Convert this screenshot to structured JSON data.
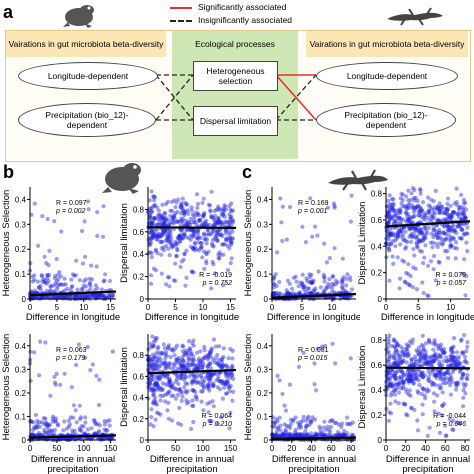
{
  "panel_a": {
    "letter": "a",
    "legend": {
      "significant": "Significantly associated",
      "insignificant": "Insignificantly associated",
      "significant_color": "#e8302a",
      "insignificant_color": "#000000"
    },
    "left_header": "Vairations in gut microbiota beta-diversity",
    "center_header": "Ecological processes",
    "right_header": "Vairations in gut microbiota beta-diversity",
    "left_items": [
      "Longitude-dependent",
      "Precipitation (bio_12)-dependent"
    ],
    "right_items": [
      "Longitude-dependent",
      "Precipitation (bio_12)-dependent"
    ],
    "processes": [
      "Heterogeneous selection",
      "Dispersal limitation"
    ],
    "header_color": "#fce6b3",
    "center_color": "#cfe7b4",
    "left_icon": "frog-icon",
    "right_icon": "lizard-icon"
  },
  "panel_b": {
    "letter": "b",
    "icon": "frog-icon"
  },
  "panel_c": {
    "letter": "c",
    "icon": "lizard-icon"
  },
  "point_color": "#2626e0",
  "chart_data": [
    {
      "id": "b1",
      "type": "scatter",
      "ylabel": "Heterogeneous Selection",
      "xlabel": "Difference in longitude",
      "xlim": [
        0,
        16
      ],
      "xticks": [
        0,
        5,
        10,
        15
      ],
      "ylim": [
        0,
        0.45
      ],
      "yticks": [
        0,
        0.1,
        0.2,
        0.3,
        0.4
      ],
      "stats": {
        "r": "R = 0.097",
        "p": "p = 0.002"
      },
      "fit": [
        [
          0,
          0.015
        ],
        [
          16,
          0.03
        ]
      ],
      "seed": 11,
      "pattern": "low"
    },
    {
      "id": "b2",
      "type": "scatter",
      "ylabel": "Dispersal limitation",
      "xlabel": "Difference in longitude",
      "xlim": [
        0,
        16
      ],
      "xticks": [
        0,
        5,
        10,
        15
      ],
      "ylim": [
        0,
        1.0
      ],
      "yticks": [
        0,
        0.2,
        0.4,
        0.6,
        0.8
      ],
      "stats": {
        "r": "R = -0.019",
        "p": "p = 0.752"
      },
      "fit": [
        [
          0,
          0.64
        ],
        [
          16,
          0.635
        ]
      ],
      "seed": 12,
      "pattern": "band"
    },
    {
      "id": "b3",
      "type": "scatter",
      "ylabel": "Heterogeneous Selection",
      "xlabel": "Difference in annual precipitation",
      "xlim": [
        0,
        160
      ],
      "xticks": [
        0,
        50,
        100,
        150
      ],
      "ylim": [
        0,
        0.45
      ],
      "yticks": [
        0,
        0.1,
        0.2,
        0.3,
        0.4
      ],
      "stats": {
        "r": "R = 0.063",
        "p": "p = 0.179"
      },
      "fit": [
        [
          0,
          0.01
        ],
        [
          160,
          0.02
        ]
      ],
      "seed": 13,
      "pattern": "low"
    },
    {
      "id": "b4",
      "type": "scatter",
      "ylabel": "Dispersal limitation",
      "xlabel": "Difference in annual precipitation",
      "xlim": [
        0,
        160
      ],
      "xticks": [
        0,
        50,
        100,
        150
      ],
      "ylim": [
        0,
        1.0
      ],
      "yticks": [
        0,
        0.2,
        0.4,
        0.6,
        0.8
      ],
      "stats": {
        "r": "R = 0.064",
        "p": "p = 0.210"
      },
      "fit": [
        [
          0,
          0.63
        ],
        [
          160,
          0.66
        ]
      ],
      "seed": 14,
      "pattern": "band"
    },
    {
      "id": "c1",
      "type": "scatter",
      "ylabel": "Heterogeneous Selection",
      "xlabel": "Difference in longitude",
      "xlim": [
        0,
        14
      ],
      "xticks": [
        0,
        5,
        10
      ],
      "ylim": [
        0,
        0.45
      ],
      "yticks": [
        0,
        0.1,
        0.2,
        0.3,
        0.4
      ],
      "stats": {
        "r": "R = 0.169",
        "p": "p = 0.001"
      },
      "fit": [
        [
          0,
          0.005
        ],
        [
          14,
          0.02
        ]
      ],
      "seed": 21,
      "pattern": "low"
    },
    {
      "id": "c2",
      "type": "scatter",
      "ylabel": "Dispersal Limitation",
      "xlabel": "Difference in longitude",
      "xlim": [
        0,
        13
      ],
      "xticks": [
        0,
        5,
        10
      ],
      "ylim": [
        0,
        0.85
      ],
      "yticks": [
        0,
        0.2,
        0.4,
        0.6,
        0.8
      ],
      "stats": {
        "r": "R = 0.079",
        "p": "p = 0.057"
      },
      "fit": [
        [
          0,
          0.55
        ],
        [
          13,
          0.59
        ]
      ],
      "seed": 22,
      "pattern": "band"
    },
    {
      "id": "c3",
      "type": "scatter",
      "ylabel": "Heterogeneous Selection",
      "xlabel": "Difference in annual precipitation",
      "xlim": [
        0,
        85
      ],
      "xticks": [
        0,
        20,
        40,
        60,
        80
      ],
      "ylim": [
        0,
        0.45
      ],
      "yticks": [
        0,
        0.1,
        0.2,
        0.3,
        0.4
      ],
      "stats": {
        "r": "R = 0.081",
        "p": "p = 0.015"
      },
      "fit": [
        [
          0,
          0.005
        ],
        [
          85,
          0.01
        ]
      ],
      "seed": 23,
      "pattern": "low"
    },
    {
      "id": "c4",
      "type": "scatter",
      "ylabel": "Dispersal Limitation",
      "xlabel": "Difference in annual precipitation",
      "xlim": [
        0,
        85
      ],
      "xticks": [
        0,
        20,
        40,
        60,
        80
      ],
      "ylim": [
        0,
        0.85
      ],
      "yticks": [
        0,
        0.2,
        0.4,
        0.6,
        0.8
      ],
      "stats": {
        "r": "R = -0.044",
        "p": "p = 0.646"
      },
      "fit": [
        [
          0,
          0.58
        ],
        [
          85,
          0.575
        ]
      ],
      "seed": 24,
      "pattern": "band"
    }
  ]
}
